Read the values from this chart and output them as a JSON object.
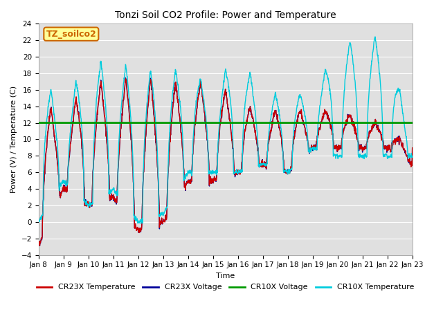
{
  "title": "Tonzi Soil CO2 Profile: Power and Temperature",
  "xlabel": "Time",
  "ylabel": "Power (V) / Temperature (C)",
  "ylim": [
    -4,
    24
  ],
  "xlim": [
    0,
    15
  ],
  "yticks": [
    -4,
    -2,
    0,
    2,
    4,
    6,
    8,
    10,
    12,
    14,
    16,
    18,
    20,
    22,
    24
  ],
  "xtick_labels": [
    "Jan 8",
    "Jan 9",
    "Jan 10",
    "Jan 11",
    "Jan 12",
    "Jan 13",
    "Jan 14",
    "Jan 15",
    "Jan 16",
    "Jan 17",
    "Jan 18",
    "Jan 19",
    "Jan 20",
    "Jan 21",
    "Jan 22",
    "Jan 23"
  ],
  "cr10x_voltage_level": 12.0,
  "line_colors": {
    "cr23x_temp": "#cc0000",
    "cr23x_voltage": "#000099",
    "cr10x_voltage": "#009900",
    "cr10x_temp": "#00ccdd"
  },
  "line_widths": {
    "cr23x_temp": 1.0,
    "cr23x_voltage": 1.0,
    "cr10x_voltage": 2.0,
    "cr10x_temp": 1.0
  },
  "legend_items": [
    "CR23X Temperature",
    "CR23X Voltage",
    "CR10X Voltage",
    "CR10X Temperature"
  ],
  "legend_colors": [
    "#cc0000",
    "#000099",
    "#009900",
    "#00ccdd"
  ],
  "annotation_text": "TZ_soilco2",
  "annotation_bg": "#ffff99",
  "annotation_border": "#cc6600",
  "bg_color": "#e0e0e0",
  "fig_bg": "#ffffff",
  "title_fontsize": 10,
  "axis_label_fontsize": 8,
  "tick_fontsize": 7.5,
  "legend_fontsize": 8
}
